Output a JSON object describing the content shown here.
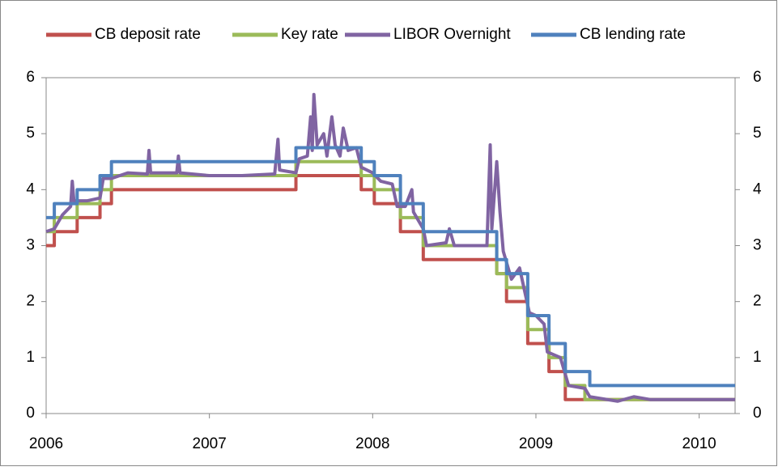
{
  "chart_data": {
    "type": "line",
    "step": true,
    "xlim": [
      2006,
      2010.22
    ],
    "xticks": [
      2006,
      2007,
      2008,
      2009,
      2010
    ],
    "ylim": [
      0,
      6
    ],
    "yticks": [
      0,
      1,
      2,
      3,
      4,
      5,
      6
    ],
    "y2lim": [
      0,
      6
    ],
    "y2ticks": [
      0,
      1,
      2,
      3,
      4,
      5,
      6
    ],
    "legend": "top",
    "series": [
      {
        "name": "CB deposit rate",
        "color": "#c0504d",
        "step": true,
        "x": [
          2006.0,
          2006.05,
          2006.19,
          2006.33,
          2006.4,
          2007.53,
          2007.93,
          2008.01,
          2008.17,
          2008.31,
          2008.76,
          2008.82,
          2008.95,
          2009.08,
          2009.18,
          2010.22
        ],
        "values": [
          3.0,
          3.25,
          3.5,
          3.75,
          4.0,
          4.25,
          4.0,
          3.75,
          3.25,
          2.75,
          2.5,
          2.0,
          1.25,
          0.75,
          0.25,
          0.25
        ]
      },
      {
        "name": "Key rate",
        "color": "#9bbb59",
        "step": true,
        "x": [
          2006.0,
          2006.05,
          2006.19,
          2006.33,
          2006.4,
          2007.53,
          2007.93,
          2008.01,
          2008.17,
          2008.31,
          2008.76,
          2008.82,
          2008.95,
          2009.08,
          2009.18,
          2009.3,
          2010.22
        ],
        "values": [
          3.25,
          3.5,
          3.75,
          4.0,
          4.25,
          4.5,
          4.25,
          4.0,
          3.5,
          3.0,
          2.5,
          2.25,
          1.5,
          1.0,
          0.5,
          0.25,
          0.25
        ]
      },
      {
        "name": "LIBOR Overnight",
        "color": "#8064a2",
        "step": false,
        "x": [
          2006.0,
          2006.05,
          2006.1,
          2006.15,
          2006.16,
          2006.17,
          2006.25,
          2006.33,
          2006.35,
          2006.4,
          2006.5,
          2006.62,
          2006.63,
          2006.64,
          2006.8,
          2006.81,
          2006.82,
          2007.0,
          2007.2,
          2007.4,
          2007.42,
          2007.43,
          2007.53,
          2007.55,
          2007.6,
          2007.62,
          2007.63,
          2007.64,
          2007.66,
          2007.7,
          2007.72,
          2007.75,
          2007.77,
          2007.8,
          2007.82,
          2007.85,
          2007.9,
          2007.93,
          2008.0,
          2008.05,
          2008.12,
          2008.15,
          2008.2,
          2008.24,
          2008.25,
          2008.31,
          2008.33,
          2008.45,
          2008.47,
          2008.5,
          2008.7,
          2008.72,
          2008.73,
          2008.76,
          2008.78,
          2008.8,
          2008.85,
          2008.9,
          2008.93,
          2008.96,
          2009.0,
          2009.05,
          2009.07,
          2009.15,
          2009.2,
          2009.3,
          2009.33,
          2009.5,
          2009.6,
          2009.7,
          2010.0,
          2010.22
        ],
        "values": [
          3.25,
          3.3,
          3.55,
          3.7,
          4.15,
          3.8,
          3.8,
          3.85,
          4.2,
          4.2,
          4.3,
          4.28,
          4.7,
          4.3,
          4.3,
          4.6,
          4.3,
          4.25,
          4.25,
          4.28,
          4.9,
          4.35,
          4.3,
          4.55,
          4.6,
          5.3,
          4.7,
          5.7,
          4.8,
          5.0,
          4.6,
          5.3,
          4.8,
          4.6,
          5.1,
          4.7,
          4.75,
          4.4,
          4.3,
          4.15,
          4.1,
          3.7,
          3.7,
          4.0,
          3.6,
          3.3,
          3.0,
          3.05,
          3.3,
          3.0,
          3.0,
          4.8,
          3.3,
          4.5,
          3.6,
          2.9,
          2.4,
          2.6,
          2.2,
          1.8,
          1.75,
          1.6,
          1.1,
          1.0,
          0.5,
          0.45,
          0.3,
          0.22,
          0.3,
          0.25,
          0.25,
          0.25
        ]
      },
      {
        "name": "CB lending rate",
        "color": "#4f81bd",
        "step": true,
        "x": [
          2006.0,
          2006.05,
          2006.19,
          2006.33,
          2006.4,
          2007.53,
          2007.93,
          2008.01,
          2008.17,
          2008.31,
          2008.76,
          2008.82,
          2008.95,
          2009.08,
          2009.18,
          2009.33,
          2010.22
        ],
        "values": [
          3.5,
          3.75,
          4.0,
          4.25,
          4.5,
          4.75,
          4.5,
          4.25,
          3.75,
          3.25,
          2.75,
          2.5,
          1.75,
          1.25,
          0.75,
          0.5,
          0.5
        ]
      }
    ]
  }
}
